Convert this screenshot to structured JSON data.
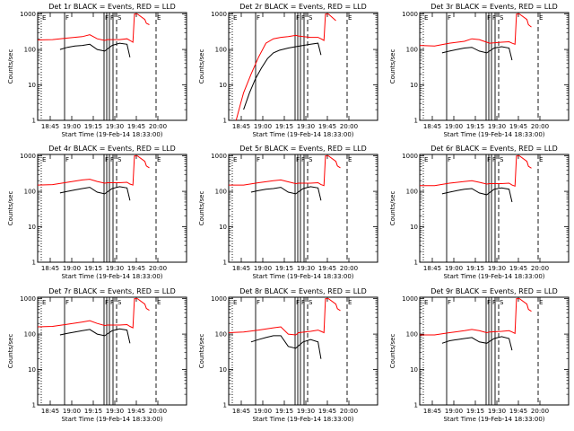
{
  "figure": {
    "colors": {
      "events": "#000000",
      "lld": "#ff0000",
      "axes": "#000000",
      "background": "#ffffff"
    }
  },
  "chart_data": [
    {
      "type": "line",
      "title": "Det 1r BLACK = Events, RED = LLD",
      "xlabel": "Start Time (19-Feb-14 18:33:00)",
      "ylabel": "Counts/sec",
      "xticks": [
        "18:45",
        "19:00",
        "19:15",
        "19:30",
        "19:45",
        "20:00"
      ],
      "yticks": [
        "1",
        "10",
        "100",
        "1000"
      ],
      "yscale": "log",
      "xlim_minutes": [
        -9,
        1
      ],
      "ylim": [
        1,
        1100
      ],
      "marker_labels": [
        "E",
        "F",
        "F",
        "F",
        "S",
        "E"
      ],
      "series": [
        {
          "color": "#ff0000",
          "x": [
            -9.0,
            -8.0,
            -7.0,
            -6.0,
            -5.5,
            -5.0,
            -4.5,
            -4.3,
            -3.5,
            -3.0,
            -2.8,
            -2.6,
            -2.5,
            -2.3,
            -1.8,
            -1.7,
            -1.5
          ],
          "y": [
            185,
            190,
            210,
            230,
            260,
            200,
            180,
            190,
            190,
            200,
            180,
            160,
            1000,
            1000,
            700,
            550,
            500
          ]
        },
        {
          "color": "#000000",
          "x": [
            -7.5,
            -7.0,
            -6.5,
            -6.0,
            -5.5,
            -5.0,
            -4.5,
            -4.0,
            -3.5,
            -3.0,
            -2.8
          ],
          "y": [
            100,
            115,
            125,
            130,
            140,
            100,
            90,
            130,
            150,
            140,
            60
          ]
        }
      ]
    },
    {
      "type": "line",
      "title": "Det 2r BLACK = Events, RED = LLD",
      "xlabel": "Start Time (19-Feb-14 18:33:00)",
      "ylabel": "Counts/sec",
      "xticks": [
        "18:45",
        "19:00",
        "19:15",
        "19:30",
        "19:45",
        "20:00"
      ],
      "yticks": [
        "1",
        "10",
        "100",
        "1000"
      ],
      "yscale": "log",
      "xlim_minutes": [
        -9,
        1
      ],
      "ylim": [
        1,
        1100
      ],
      "marker_labels": [
        "E",
        "F",
        "F",
        "F",
        "S",
        "E"
      ],
      "series": [
        {
          "color": "#ff0000",
          "x": [
            -8.5,
            -8.2,
            -8.0,
            -7.5,
            -7.0,
            -6.5,
            -6.0,
            -5.5,
            -5.0,
            -4.5,
            -4.3,
            -4.0,
            -3.5,
            -3.0,
            -2.8,
            -2.6,
            -2.5,
            -2.3,
            -1.8
          ],
          "y": [
            1,
            3,
            6,
            20,
            60,
            150,
            200,
            220,
            230,
            250,
            240,
            230,
            220,
            220,
            200,
            180,
            1000,
            1000,
            650
          ]
        },
        {
          "color": "#000000",
          "x": [
            -8.0,
            -7.6,
            -7.2,
            -6.8,
            -6.4,
            -6.0,
            -5.6,
            -5.0,
            -4.5,
            -4.0,
            -3.5,
            -3.0,
            -2.8
          ],
          "y": [
            2,
            6,
            15,
            30,
            55,
            80,
            95,
            110,
            120,
            130,
            140,
            150,
            70
          ]
        }
      ]
    },
    {
      "type": "line",
      "title": "Det 3r BLACK = Events, RED = LLD",
      "xlabel": "Start Time (19-Feb-14 18:33:00)",
      "ylabel": "Counts/sec",
      "xticks": [
        "18:45",
        "19:00",
        "19:15",
        "19:30",
        "19:45",
        "20:00"
      ],
      "yticks": [
        "1",
        "10",
        "100",
        "1000"
      ],
      "yscale": "log",
      "xlim_minutes": [
        -9,
        1
      ],
      "ylim": [
        1,
        1100
      ],
      "marker_labels": [
        "E",
        "F",
        "F",
        "F",
        "S",
        "E"
      ],
      "series": [
        {
          "color": "#ff0000",
          "x": [
            -9.0,
            -8.0,
            -7.0,
            -6.0,
            -5.5,
            -5.0,
            -4.5,
            -4.3,
            -3.5,
            -3.0,
            -2.8,
            -2.6,
            -2.5,
            -2.3,
            -1.8,
            -1.7,
            -1.5
          ],
          "y": [
            130,
            125,
            150,
            170,
            200,
            190,
            160,
            150,
            160,
            165,
            150,
            140,
            1000,
            1000,
            700,
            500,
            430
          ]
        },
        {
          "color": "#000000",
          "x": [
            -7.5,
            -7.0,
            -6.5,
            -6.0,
            -5.5,
            -5.0,
            -4.5,
            -4.0,
            -3.5,
            -3.0,
            -2.8
          ],
          "y": [
            80,
            90,
            100,
            110,
            115,
            90,
            80,
            110,
            120,
            110,
            50
          ]
        }
      ]
    },
    {
      "type": "line",
      "title": "Det 4r BLACK = Events, RED = LLD",
      "xlabel": "Start Time (19-Feb-14 18:33:00)",
      "ylabel": "Counts/sec",
      "xticks": [
        "18:45",
        "19:00",
        "19:15",
        "19:30",
        "19:45",
        "20:00"
      ],
      "yticks": [
        "1",
        "10",
        "100",
        "1000"
      ],
      "yscale": "log",
      "xlim_minutes": [
        -9,
        1
      ],
      "ylim": [
        1,
        1100
      ],
      "marker_labels": [
        "E",
        "F",
        "F",
        "F",
        "S",
        "E"
      ],
      "series": [
        {
          "color": "#ff0000",
          "x": [
            -9.0,
            -8.0,
            -7.0,
            -6.0,
            -5.5,
            -5.0,
            -4.5,
            -4.3,
            -3.5,
            -3.0,
            -2.8,
            -2.6,
            -2.5,
            -2.3,
            -1.8,
            -1.7,
            -1.5
          ],
          "y": [
            150,
            155,
            180,
            210,
            220,
            190,
            170,
            175,
            175,
            180,
            160,
            150,
            1000,
            1000,
            700,
            520,
            460
          ]
        },
        {
          "color": "#000000",
          "x": [
            -7.5,
            -7.0,
            -6.5,
            -6.0,
            -5.5,
            -5.0,
            -4.5,
            -4.0,
            -3.5,
            -3.0,
            -2.8
          ],
          "y": [
            90,
            100,
            110,
            120,
            130,
            95,
            85,
            120,
            135,
            125,
            55
          ]
        }
      ]
    },
    {
      "type": "line",
      "title": "Det 5r BLACK = Events, RED = LLD",
      "xlabel": "Start Time (19-Feb-14 18:33:00)",
      "ylabel": "Counts/sec",
      "xticks": [
        "18:45",
        "19:00",
        "19:15",
        "19:30",
        "19:45",
        "20:00"
      ],
      "yticks": [
        "1",
        "10",
        "100",
        "1000"
      ],
      "yscale": "log",
      "xlim_minutes": [
        -9,
        1
      ],
      "ylim": [
        1,
        1100
      ],
      "marker_labels": [
        "E",
        "F",
        "F",
        "F",
        "S",
        "E"
      ],
      "series": [
        {
          "color": "#ff0000",
          "x": [
            -9.0,
            -8.0,
            -7.0,
            -6.0,
            -5.5,
            -5.0,
            -4.5,
            -4.3,
            -3.5,
            -3.0,
            -2.8,
            -2.6,
            -2.5,
            -2.3,
            -1.8,
            -1.7,
            -1.5
          ],
          "y": [
            150,
            150,
            175,
            200,
            210,
            185,
            165,
            170,
            170,
            175,
            155,
            145,
            1000,
            1000,
            700,
            520,
            460
          ]
        },
        {
          "color": "#000000",
          "x": [
            -7.5,
            -7.0,
            -6.5,
            -6.0,
            -5.5,
            -5.0,
            -4.5,
            -4.0,
            -3.5,
            -3.0,
            -2.8
          ],
          "y": [
            95,
            105,
            115,
            120,
            130,
            95,
            85,
            120,
            135,
            125,
            55
          ]
        }
      ]
    },
    {
      "type": "line",
      "title": "Det 6r BLACK = Events, RED = LLD",
      "xlabel": "Start Time (19-Feb-14 18:33:00)",
      "ylabel": "Counts/sec",
      "xticks": [
        "18:45",
        "19:00",
        "19:15",
        "19:30",
        "19:45",
        "20:00"
      ],
      "yticks": [
        "1",
        "10",
        "100",
        "1000"
      ],
      "yscale": "log",
      "xlim_minutes": [
        -9,
        1
      ],
      "ylim": [
        1,
        1100
      ],
      "marker_labels": [
        "E",
        "F",
        "F",
        "F",
        "S",
        "E"
      ],
      "series": [
        {
          "color": "#ff0000",
          "x": [
            -9.0,
            -8.0,
            -7.0,
            -6.0,
            -5.5,
            -5.0,
            -4.5,
            -4.3,
            -3.5,
            -3.0,
            -2.8,
            -2.6,
            -2.5,
            -2.3,
            -1.8,
            -1.7,
            -1.5
          ],
          "y": [
            145,
            145,
            170,
            190,
            200,
            180,
            160,
            165,
            165,
            170,
            150,
            140,
            1000,
            1000,
            700,
            510,
            450
          ]
        },
        {
          "color": "#000000",
          "x": [
            -7.5,
            -7.0,
            -6.5,
            -6.0,
            -5.5,
            -5.0,
            -4.5,
            -4.0,
            -3.5,
            -3.0,
            -2.8
          ],
          "y": [
            85,
            95,
            105,
            115,
            120,
            90,
            80,
            115,
            125,
            115,
            50
          ]
        }
      ]
    },
    {
      "type": "line",
      "title": "Det 7r BLACK = Events, RED = LLD",
      "xlabel": "Start Time (19-Feb-14 18:33:00)",
      "ylabel": "Counts/sec",
      "xticks": [
        "18:45",
        "19:00",
        "19:15",
        "19:30",
        "19:45",
        "20:00"
      ],
      "yticks": [
        "1",
        "10",
        "100",
        "1000"
      ],
      "yscale": "log",
      "xlim_minutes": [
        -9,
        1
      ],
      "ylim": [
        1,
        1100
      ],
      "marker_labels": [
        "E",
        "F",
        "F",
        "F",
        "S",
        "E"
      ],
      "series": [
        {
          "color": "#ff0000",
          "x": [
            -9.0,
            -8.0,
            -7.0,
            -6.0,
            -5.5,
            -5.0,
            -4.5,
            -4.3,
            -3.5,
            -3.0,
            -2.8,
            -2.6,
            -2.5,
            -2.3,
            -1.8,
            -1.7,
            -1.5
          ],
          "y": [
            160,
            165,
            190,
            220,
            240,
            200,
            175,
            180,
            180,
            185,
            165,
            150,
            1000,
            1000,
            700,
            530,
            470
          ]
        },
        {
          "color": "#000000",
          "x": [
            -7.5,
            -7.0,
            -6.5,
            -6.0,
            -5.5,
            -5.0,
            -4.5,
            -4.0,
            -3.5,
            -3.0,
            -2.8
          ],
          "y": [
            95,
            105,
            115,
            125,
            135,
            100,
            90,
            125,
            140,
            130,
            55
          ]
        }
      ]
    },
    {
      "type": "line",
      "title": "Det 8r BLACK = Events, RED = LLD",
      "xlabel": "Start Time (19-Feb-14 18:33:00)",
      "ylabel": "Counts/sec",
      "xticks": [
        "18:45",
        "19:00",
        "19:15",
        "19:30",
        "19:45",
        "20:00"
      ],
      "yticks": [
        "1",
        "10",
        "100",
        "1000"
      ],
      "yscale": "log",
      "xlim_minutes": [
        -9,
        1
      ],
      "ylim": [
        1,
        1100
      ],
      "marker_labels": [
        "E",
        "F",
        "F",
        "F",
        "S",
        "E"
      ],
      "series": [
        {
          "color": "#ff0000",
          "x": [
            -9.0,
            -8.0,
            -7.0,
            -6.0,
            -5.5,
            -5.0,
            -4.5,
            -4.3,
            -3.5,
            -3.0,
            -2.8,
            -2.6,
            -2.5,
            -2.3,
            -1.8,
            -1.7,
            -1.5
          ],
          "y": [
            110,
            115,
            130,
            150,
            160,
            100,
            95,
            110,
            120,
            130,
            120,
            110,
            1000,
            1000,
            700,
            520,
            460
          ]
        },
        {
          "color": "#000000",
          "x": [
            -7.5,
            -7.0,
            -6.5,
            -6.0,
            -5.5,
            -5.0,
            -4.5,
            -4.0,
            -3.5,
            -3.0,
            -2.8
          ],
          "y": [
            60,
            70,
            80,
            90,
            90,
            45,
            40,
            60,
            70,
            60,
            20
          ]
        }
      ]
    },
    {
      "type": "line",
      "title": "Det 9r BLACK = Events, RED = LLD",
      "xlabel": "Start Time (19-Feb-14 18:33:00)",
      "ylabel": "Counts/sec",
      "xticks": [
        "18:45",
        "19:00",
        "19:15",
        "19:30",
        "19:45",
        "20:00"
      ],
      "yticks": [
        "1",
        "10",
        "100",
        "1000"
      ],
      "yscale": "log",
      "xlim_minutes": [
        -9,
        1
      ],
      "ylim": [
        1,
        1100
      ],
      "marker_labels": [
        "E",
        "F",
        "F",
        "F",
        "S",
        "E"
      ],
      "series": [
        {
          "color": "#ff0000",
          "x": [
            -9.0,
            -8.0,
            -7.0,
            -6.0,
            -5.5,
            -5.0,
            -4.5,
            -4.3,
            -3.5,
            -3.0,
            -2.8,
            -2.6,
            -2.5,
            -2.3,
            -1.8,
            -1.7,
            -1.5
          ],
          "y": [
            95,
            95,
            110,
            125,
            135,
            125,
            110,
            115,
            120,
            125,
            115,
            105,
            1000,
            1000,
            700,
            500,
            440
          ]
        },
        {
          "color": "#000000",
          "x": [
            -7.5,
            -7.0,
            -6.5,
            -6.0,
            -5.5,
            -5.0,
            -4.5,
            -4.0,
            -3.5,
            -3.0,
            -2.8
          ],
          "y": [
            55,
            65,
            70,
            75,
            80,
            60,
            55,
            75,
            85,
            75,
            35
          ]
        }
      ]
    }
  ]
}
